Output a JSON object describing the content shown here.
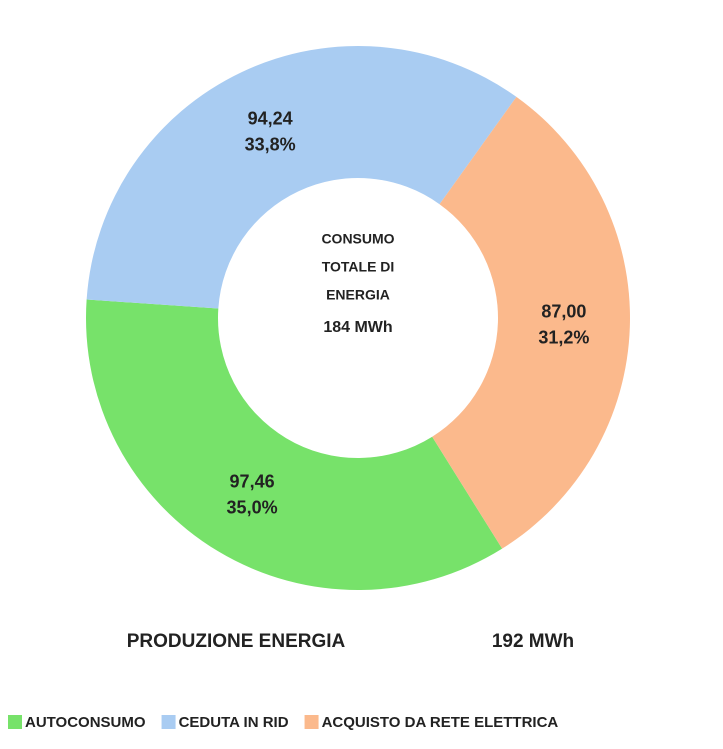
{
  "chart_data": {
    "type": "donut",
    "categories": [
      "AUTOCONSUMO",
      "CEDUTA IN RID",
      "ACQUISTO DA RETE ELETTRICA"
    ],
    "values": [
      97.46,
      94.24,
      87.0
    ],
    "value_labels": [
      "97,46",
      "94,24",
      "87,00"
    ],
    "percents": [
      35.0,
      33.8,
      31.2
    ],
    "percent_labels": [
      "35,0%",
      "33,8%",
      "31,2%"
    ],
    "colors": [
      "#77e26a",
      "#a9ccf2",
      "#fbb98c"
    ],
    "center_title": [
      "CONSUMO",
      "TOTALE DI",
      "ENERGIA"
    ],
    "center_value": "184 MWh",
    "footer_label": "PRODUZIONE ENERGIA",
    "footer_value": "192 MWh",
    "legend": "bottom"
  }
}
